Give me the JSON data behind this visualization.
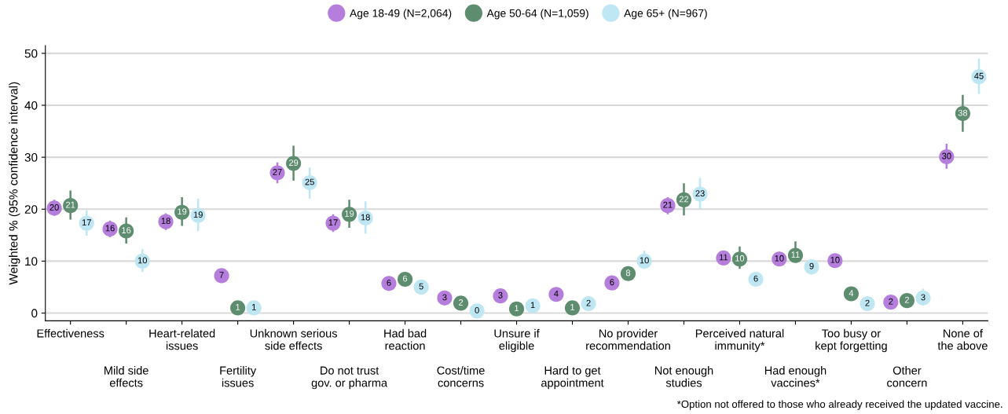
{
  "chart_data": {
    "type": "scatter",
    "ylabel": "Weighted % (95% confidence interval)",
    "categories": [
      "Effectiveness",
      "Mild side\neffects",
      "Heart-related\nissues",
      "Fertility\nissues",
      "Unknown serious\nside effects",
      "Do not trust\ngov. or pharma",
      "Had bad\nreaction",
      "Cost/time\nconcerns",
      "Unsure if\neligible",
      "Hard to get\nappointment",
      "No provider\nrecommendation",
      "Not enough\nstudies",
      "Perceived natural\nimmunity*",
      "Had enough\nvaccines*",
      "Too busy or\nkept forgetting",
      "Other\nconcern",
      "None of\nthe above"
    ],
    "series": [
      {
        "name": "Age 18-49 (N=2,064)",
        "color": "#b57edc",
        "values": [
          20.2,
          16.2,
          17.6,
          7.2,
          27,
          17.3,
          5.7,
          2.9,
          3.3,
          3.6,
          5.8,
          20.7,
          10.6,
          10.4,
          10.1,
          2.1,
          30.1
        ],
        "value_labels": [
          "20",
          "16",
          "18",
          "7",
          "27",
          "17",
          "6",
          "3",
          "3",
          "4",
          "6",
          "21",
          "11",
          "10",
          "10",
          "2",
          "30"
        ],
        "errors": [
          [
            18.7,
            21.8
          ],
          [
            14.6,
            17.8
          ],
          [
            16,
            19.2
          ],
          null,
          [
            25,
            29
          ],
          [
            15.6,
            19
          ],
          null,
          null,
          null,
          null,
          null,
          [
            19,
            22.3
          ],
          [
            9.5,
            12
          ],
          [
            9.2,
            11.8
          ],
          null,
          null,
          [
            27.8,
            32.6
          ]
        ]
      },
      {
        "name": "Age 50-64 (N=1,059)",
        "color": "#5e8c6f",
        "values": [
          20.7,
          15.8,
          19.4,
          1.0,
          28.8,
          19,
          6.5,
          1.9,
          0.8,
          1.0,
          7.6,
          21.8,
          10.4,
          11.1,
          3.7,
          2.4,
          38.4
        ],
        "value_labels": [
          "21",
          "16",
          "19",
          "1",
          "29",
          "19",
          "6",
          "2",
          "1",
          "1",
          "8",
          "22",
          "10",
          "11",
          "4",
          "2",
          "38"
        ],
        "errors": [
          [
            18,
            23.6
          ],
          [
            13.4,
            18.4
          ],
          [
            16.8,
            22.3
          ],
          null,
          [
            25.5,
            32.2
          ],
          [
            16.4,
            21.8
          ],
          null,
          null,
          null,
          null,
          null,
          [
            18.8,
            25
          ],
          [
            8.5,
            12.8
          ],
          [
            11.1,
            13.8
          ],
          null,
          null,
          [
            34.9,
            42
          ]
        ]
      },
      {
        "name": "Age 65+ (N=967)",
        "color": "#bfe7f3",
        "values": [
          17.3,
          10,
          18.8,
          1.0,
          25.1,
          18.3,
          5,
          0.4,
          1.4,
          1.8,
          10,
          22.9,
          6.5,
          8.9,
          1.8,
          2.9,
          45.5
        ],
        "value_labels": [
          "17",
          "10",
          "19",
          "1",
          "25",
          "18",
          "5",
          "0",
          "1",
          "2",
          "10",
          "23",
          "6",
          "9",
          "2",
          "3",
          "45"
        ],
        "errors": [
          [
            14.9,
            19.8
          ],
          [
            7.9,
            12.3
          ],
          [
            15.8,
            22
          ],
          null,
          [
            22,
            28
          ],
          [
            15.3,
            21.5
          ],
          null,
          null,
          [
            0.6,
            2.4
          ],
          null,
          [
            8.5,
            12
          ],
          [
            20,
            26
          ],
          null,
          [
            7.4,
            10.2
          ],
          null,
          [
            2.9,
            4.7
          ],
          [
            42.2,
            49
          ]
        ]
      }
    ],
    "ylim": [
      -1.5,
      51.5
    ],
    "yticks": [
      0,
      10,
      20,
      30,
      40,
      50
    ],
    "grid": "y",
    "legend": "top",
    "marker": "circle",
    "annotations": [
      "*Option not offered to those who already received the updated vaccine."
    ]
  }
}
